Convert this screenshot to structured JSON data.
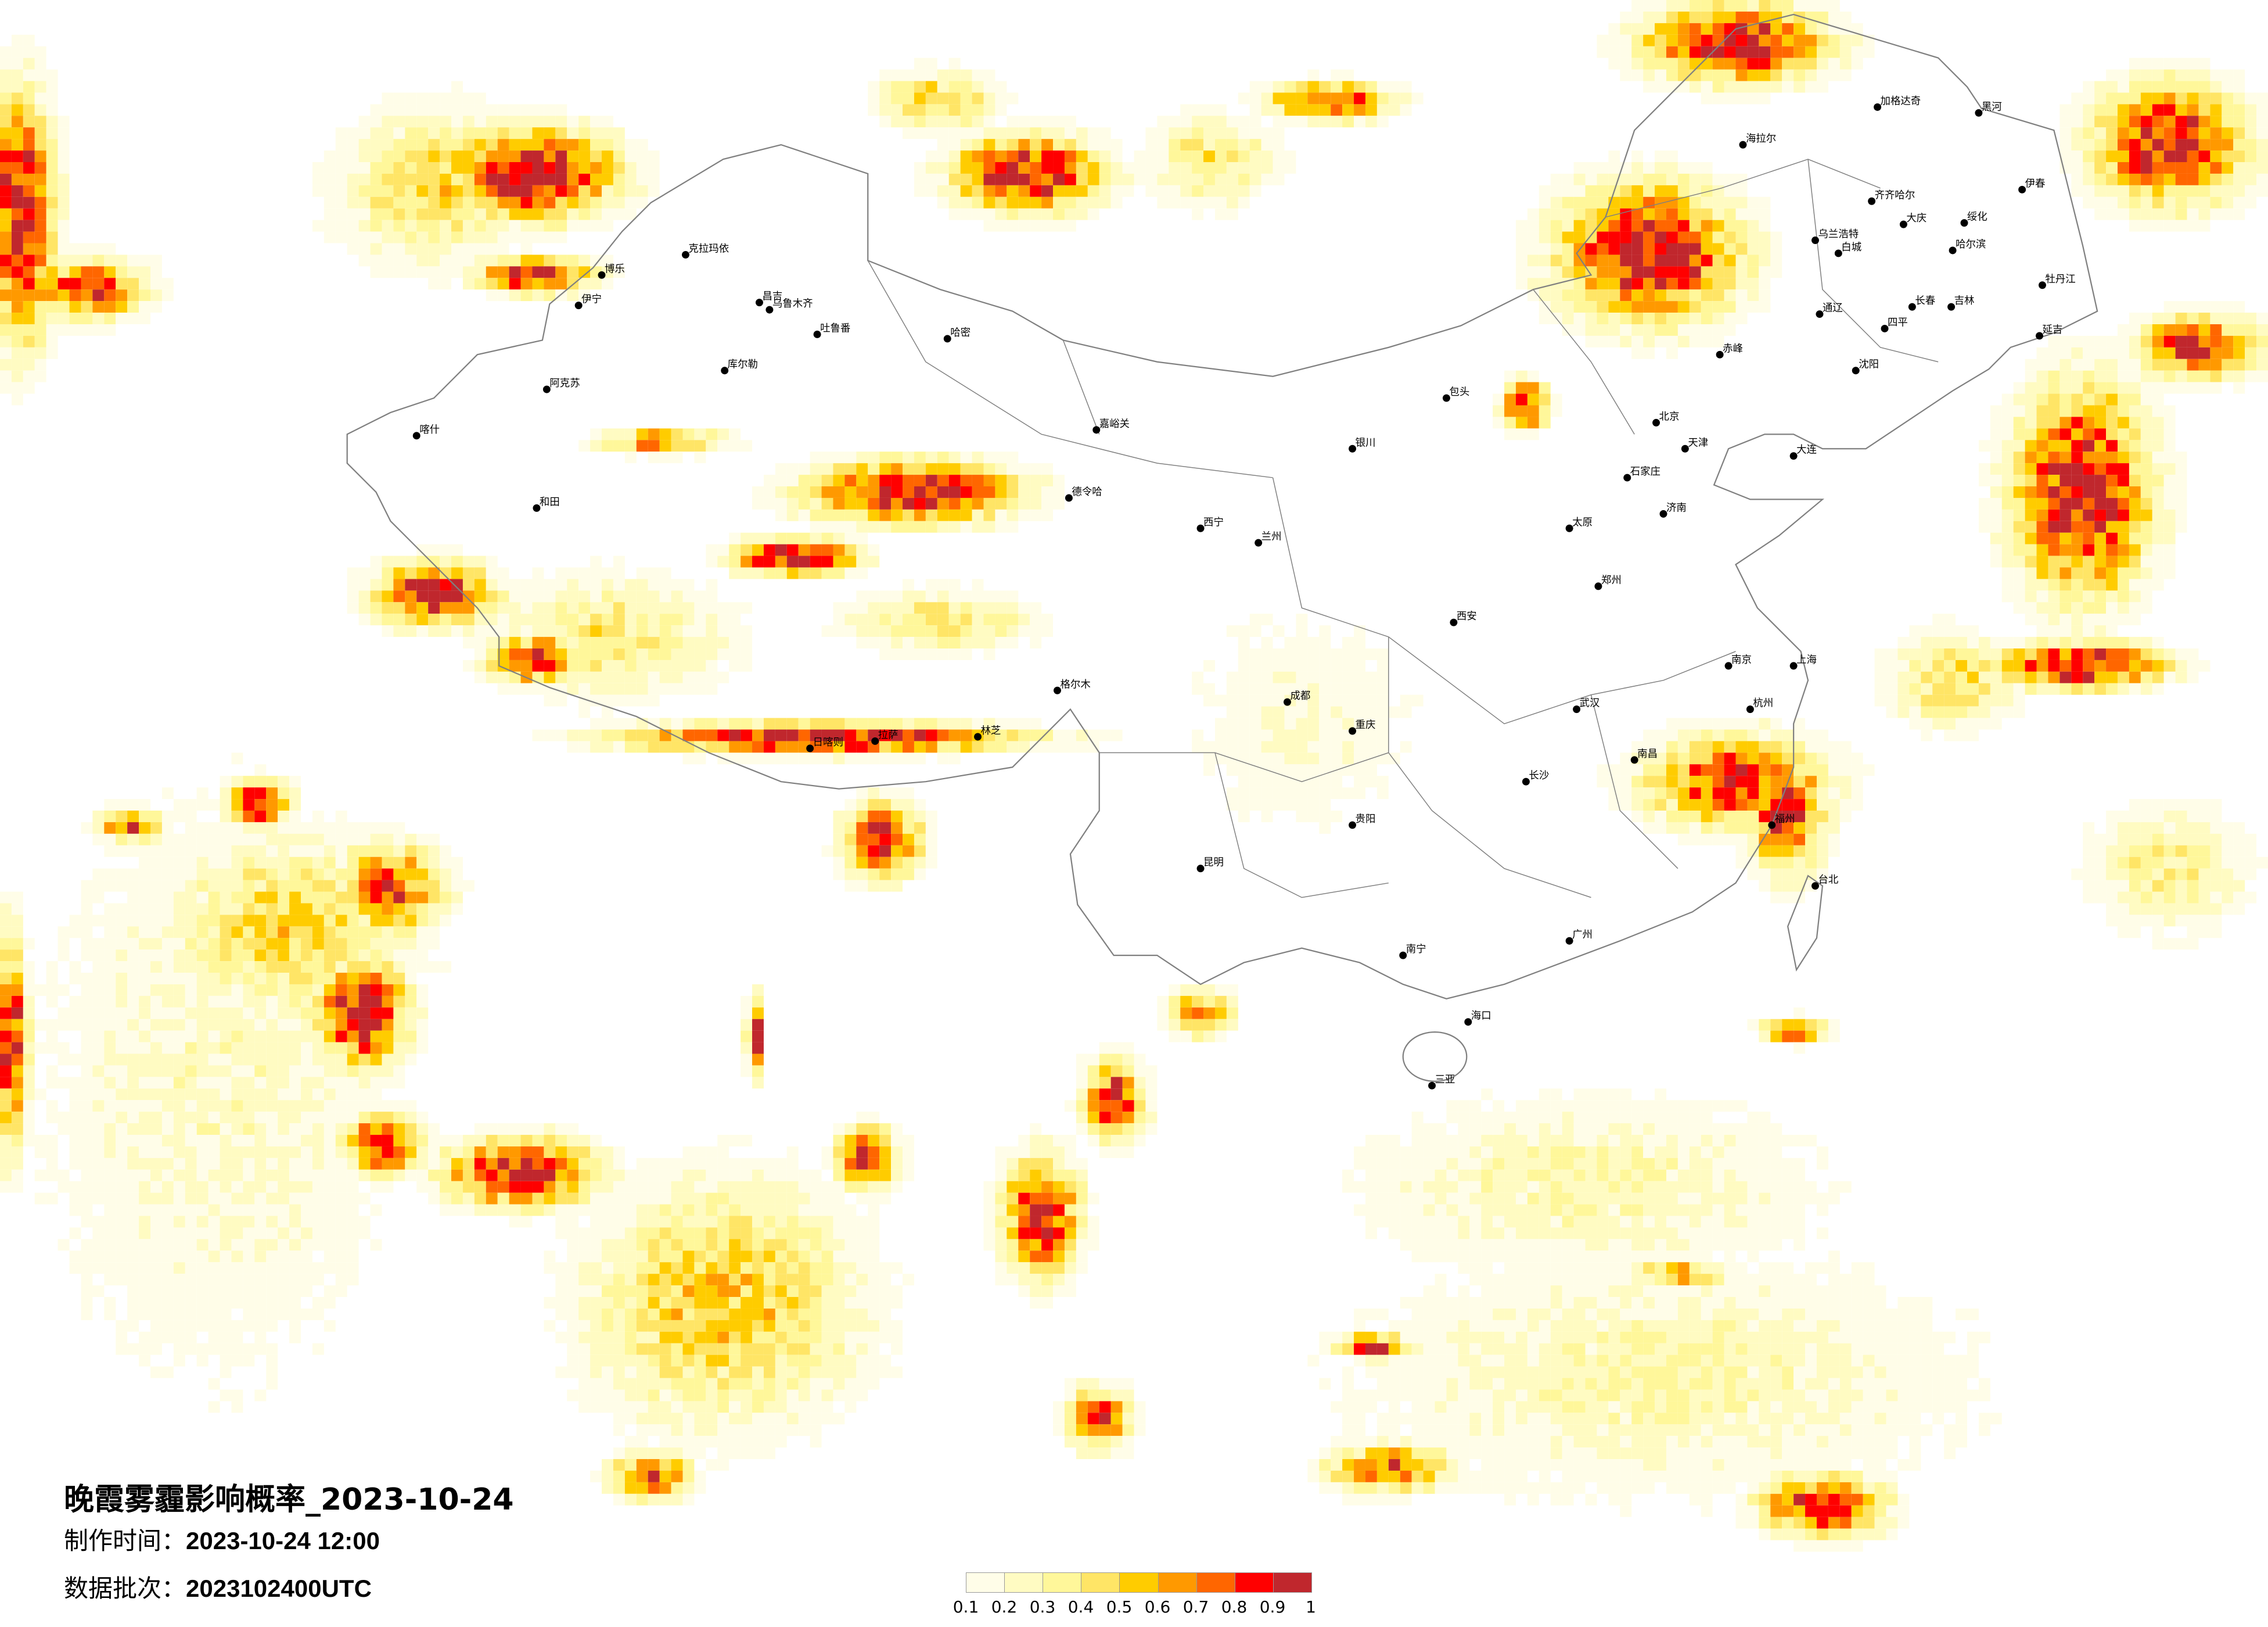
{
  "title": "晚霞雾霾影响概率_2023-10-24",
  "made_label": "制作时间：",
  "made_value": "2023-10-24 12:00",
  "batch_label": "数据批次：",
  "batch_value": "2023102400UTC",
  "legend": {
    "labels": [
      "0.1",
      "0.2",
      "0.3",
      "0.4",
      "0.5",
      "0.6",
      "0.7",
      "0.8",
      "0.9",
      "1"
    ],
    "colors": [
      "#fffde8",
      "#fffbc2",
      "#fff79a",
      "#ffe566",
      "#ffcc00",
      "#ff9900",
      "#ff6600",
      "#ff0000",
      "#c0272d"
    ]
  },
  "colors": {
    "border": "#808080",
    "city_dot": "#000000"
  },
  "cities": [
    "克拉玛依",
    "博乐",
    "伊宁",
    "昌吉",
    "乌鲁木齐",
    "吐鲁番",
    "哈密",
    "库尔勒",
    "阿克苏",
    "喀什",
    "和田",
    "嘉峪关",
    "德令哈",
    "格尔木",
    "拉萨",
    "日喀则",
    "林芝",
    "海拉尔",
    "加格达奇",
    "黑河",
    "齐齐哈尔",
    "大庆",
    "绥化",
    "哈尔滨",
    "伊春",
    "牡丹江",
    "长春",
    "吉林",
    "乌兰浩特",
    "白城",
    "通辽",
    "四平",
    "赤峰",
    "沈阳",
    "延吉",
    "大连",
    "北京",
    "天津",
    "石家庄",
    "太原",
    "包头",
    "银川",
    "兰州",
    "西宁",
    "西安",
    "郑州",
    "济南",
    "南京",
    "上海",
    "杭州",
    "武汉",
    "长沙",
    "南昌",
    "福州",
    "广州",
    "南宁",
    "海口",
    "三亚",
    "昆明",
    "贵阳",
    "成都",
    "重庆",
    "台北"
  ]
}
